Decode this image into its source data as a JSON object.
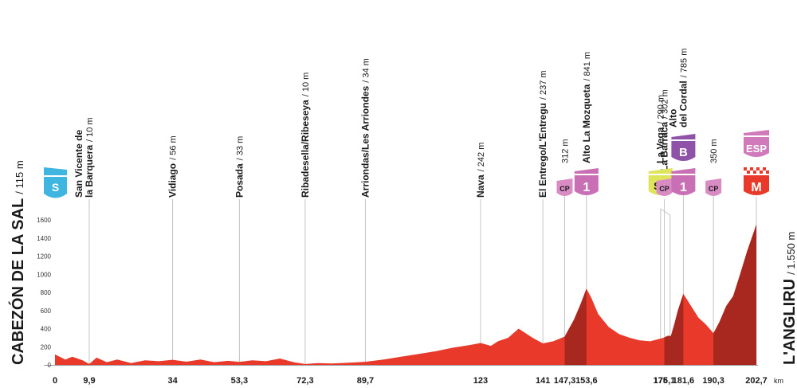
{
  "start": {
    "name": "CABEZÓN DE LA SAL",
    "altitude": "/ 115 m",
    "marker": "S",
    "color": "#3fb6e0"
  },
  "finish": {
    "name": "L'ANGLIRU",
    "altitude": "/ 1.550 m"
  },
  "axis": {
    "y_ticks": [
      "0",
      "200",
      "400",
      "600",
      "800",
      "1000",
      "1200",
      "1400",
      "1600"
    ],
    "x_unit": "km"
  },
  "locations": [
    {
      "km": 9.9,
      "label": "9,9",
      "lines": [
        "San Vicente de",
        "la Barquera"
      ],
      "alt": "/ 10 m"
    },
    {
      "km": 34,
      "label": "34",
      "lines": [
        "Vidiago"
      ],
      "alt": "/ 56 m"
    },
    {
      "km": 53.3,
      "label": "53,3",
      "lines": [
        "Posada"
      ],
      "alt": "/ 33 m"
    },
    {
      "km": 72.3,
      "label": "72,3",
      "lines": [
        "Ribadesella/Ribeseya"
      ],
      "alt": "/ 10 m"
    },
    {
      "km": 89.7,
      "label": "89,7",
      "lines": [
        "Arriondas/Les Arriondes"
      ],
      "alt": "/ 34 m"
    },
    {
      "km": 123,
      "label": "123",
      "lines": [
        "Nava"
      ],
      "alt": "/ 242 m"
    },
    {
      "km": 141,
      "label": "141",
      "lines": [
        "El Entrego/L'Entregu"
      ],
      "alt": "/ 237 m"
    },
    {
      "km": 147.3,
      "label": "147,3",
      "lines": [],
      "alt": "312 m"
    },
    {
      "km": 153.6,
      "label": "153,6",
      "lines": [
        "Alto La Mozqueta"
      ],
      "alt": "/ 841 m"
    },
    {
      "km": 175,
      "label": "175",
      "lines": [
        "La Vega"
      ],
      "alt": "/ 290 m"
    },
    {
      "km": 176.1,
      "label": "176,1",
      "lines": [
        "La Barraca"
      ],
      "alt": "/ 302 m"
    },
    {
      "km": 181.6,
      "label": "181,6",
      "lines": [
        "Alto",
        "del Cordal"
      ],
      "alt": "/ 785 m"
    },
    {
      "km": 190.3,
      "label": "190,3",
      "lines": [],
      "alt": "350 m"
    },
    {
      "km": 202.7,
      "label": "202,7",
      "lines": [],
      "alt": ""
    }
  ],
  "markers": [
    {
      "km": 147.3,
      "text": "CP",
      "type": "cp",
      "color": "#d98bc4"
    },
    {
      "km": 153.6,
      "text": "1",
      "type": "cat",
      "color": "#c96fb5"
    },
    {
      "km": 175,
      "text": "SP",
      "type": "sprint",
      "color": "#dfe55a"
    },
    {
      "km": 176.1,
      "text": "CP",
      "type": "cp",
      "color": "#d98bc4"
    },
    {
      "km": 181.6,
      "text": "1",
      "type": "cat",
      "color": "#c96fb5"
    },
    {
      "km": 181.6,
      "text": "B",
      "type": "bonus",
      "color": "#8e52a8"
    },
    {
      "km": 190.3,
      "text": "CP",
      "type": "cp",
      "color": "#d98bc4"
    },
    {
      "km": 202.7,
      "text": "M",
      "type": "finish",
      "color": "#e8392a"
    },
    {
      "km": 202.7,
      "text": "ESP",
      "type": "esp",
      "color": "#d17abb"
    }
  ],
  "colors": {
    "profile": "#e8392a",
    "profile_dark": "#a8281f",
    "guide": "#c4c4c4",
    "text": "#1a1a1a"
  },
  "chart_data": {
    "type": "area",
    "x_unit": "km",
    "y_unit": "m",
    "ylim": [
      0,
      1600
    ],
    "xlim": [
      0,
      202.7
    ],
    "x": [
      0,
      3,
      5,
      8,
      9.9,
      12,
      15,
      18,
      22,
      26,
      30,
      34,
      38,
      42,
      46,
      50,
      53.3,
      57,
      61,
      65,
      69,
      72.3,
      76,
      80,
      85,
      89.7,
      95,
      100,
      105,
      110,
      115,
      120,
      123,
      126,
      128,
      131,
      134,
      138,
      141,
      144,
      147.3,
      150,
      152,
      153.6,
      155,
      157,
      160,
      163,
      166,
      169,
      172,
      175,
      176.1,
      177,
      178,
      179,
      180,
      181.6,
      183,
      184,
      186,
      188,
      190.3,
      192,
      194,
      196,
      198,
      200,
      202.7
    ],
    "y": [
      115,
      60,
      90,
      50,
      10,
      80,
      30,
      60,
      20,
      50,
      40,
      56,
      35,
      60,
      30,
      45,
      33,
      50,
      40,
      70,
      30,
      10,
      20,
      15,
      25,
      34,
      60,
      90,
      120,
      150,
      190,
      220,
      242,
      210,
      260,
      300,
      400,
      300,
      237,
      260,
      312,
      500,
      680,
      841,
      740,
      560,
      420,
      340,
      300,
      270,
      260,
      290,
      302,
      320,
      320,
      450,
      600,
      785,
      700,
      640,
      520,
      450,
      350,
      470,
      650,
      760,
      1000,
      1250,
      1550
    ],
    "dark_segments": [
      [
        147.3,
        153.6
      ],
      [
        176.1,
        181.6
      ],
      [
        190.3,
        202.7
      ]
    ],
    "grid": false
  }
}
